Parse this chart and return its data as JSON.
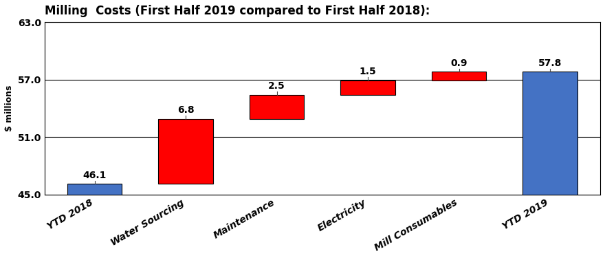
{
  "title": "Milling  Costs (First Half 2019 compared to First Half 2018):",
  "ylabel": "$ millions",
  "categories": [
    "YTD 2018",
    "Water Sourcing",
    "Maintenance",
    "Electricity",
    "Mill Consumables",
    "YTD 2019"
  ],
  "bar_bases": [
    45.0,
    46.1,
    52.9,
    55.4,
    56.9,
    45.0
  ],
  "bar_tops": [
    46.1,
    52.9,
    55.4,
    56.9,
    57.8,
    57.8
  ],
  "bar_labels": [
    "46.1",
    "6.8",
    "2.5",
    "1.5",
    "0.9",
    "57.8"
  ],
  "bar_colors": [
    "#4472C4",
    "#FF0000",
    "#FF0000",
    "#FF0000",
    "#FF0000",
    "#4472C4"
  ],
  "ylim": [
    45.0,
    63.0
  ],
  "yticks": [
    45.0,
    51.0,
    57.0,
    63.0
  ],
  "grid_color": "#000000",
  "background_color": "#FFFFFF",
  "title_fontsize": 12,
  "label_fontsize": 10,
  "tick_fontsize": 10,
  "ylabel_fontsize": 9,
  "bar_width": 0.6,
  "annotation_line_color": "#444444",
  "figwidth": 8.8,
  "figheight": 3.75,
  "dpi": 100
}
